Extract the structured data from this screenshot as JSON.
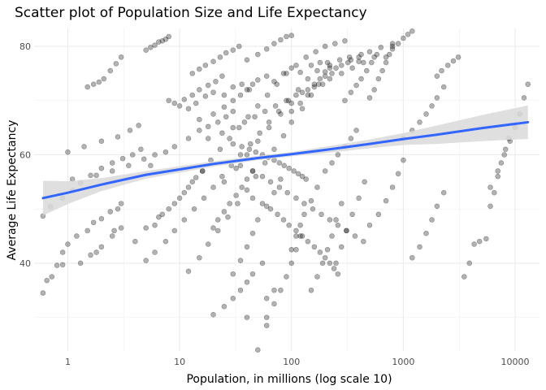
{
  "chart_data": {
    "type": "scatter",
    "title": "Scatter plot of Population Size and Life Expectancy",
    "xlabel": "Population, in millions (log scale 10)",
    "ylabel": "Average Life Expectancy",
    "x_scale": "log10",
    "xlim": [
      0.5,
      16500
    ],
    "ylim": [
      23.8,
      83.3
    ],
    "x_ticks": [
      1,
      10,
      100,
      1000,
      10000
    ],
    "x_tick_labels": [
      "1",
      "10",
      "100",
      "1000",
      "10000"
    ],
    "y_ticks": [
      40,
      60,
      80
    ],
    "y_tick_labels": [
      "40",
      "60",
      "80"
    ],
    "grid": true,
    "legend": "none",
    "colors": {
      "points": "#000000",
      "trend_line": "#3366FF",
      "confidence_band": "#d9d9d9",
      "grid": "#ebebeb"
    },
    "trend_line": {
      "method": "smooth",
      "x": [
        0.6,
        1,
        2,
        5,
        10,
        20,
        50,
        100,
        200,
        500,
        1000,
        2000,
        5000,
        13000
      ],
      "y": [
        52.0,
        53.0,
        54.5,
        56.3,
        57.3,
        58.3,
        59.4,
        60.1,
        60.9,
        62.0,
        62.9,
        63.7,
        64.9,
        66.0
      ],
      "lower": [
        48.8,
        50.9,
        53.3,
        55.6,
        56.7,
        57.8,
        59.0,
        59.7,
        60.3,
        61.2,
        61.8,
        62.0,
        62.5,
        62.9
      ],
      "upper": [
        55.2,
        55.1,
        55.7,
        57.0,
        57.9,
        58.8,
        59.8,
        60.5,
        61.5,
        62.8,
        64.0,
        65.4,
        67.3,
        69.1
      ]
    },
    "series": [
      {
        "x": [
          0.6,
          0.65,
          0.72,
          0.8,
          0.9,
          1.0,
          1.2,
          1.5,
          1.7,
          2.0,
          2.4,
          2.8,
          3.0,
          0.6,
          0.7,
          0.9,
          1.1,
          1.3,
          1.6,
          2.0,
          2.5,
          3.1,
          3.8,
          4.5,
          1.5,
          1.7,
          1.9,
          2.1,
          2.4,
          2.7,
          3.0,
          5,
          5.5,
          6,
          6.5,
          7,
          7.5,
          8,
          1.0,
          1.4,
          2.0,
          2.8,
          3.6,
          4.3,
          1.1,
          1.8,
          2.5,
          3.5,
          4.8,
          6.0,
          1.3,
          1.6,
          2.0,
          2.5,
          3.0,
          0.9,
          1.8,
          2.6,
          5.5,
          7.5,
          9,
          12,
          15,
          18,
          22,
          26,
          30,
          9,
          11,
          13,
          15,
          18,
          21,
          24,
          4,
          5,
          6.5,
          8,
          10,
          12,
          14,
          16,
          13,
          15,
          17,
          20,
          23,
          26,
          30,
          34,
          20,
          25,
          30,
          35,
          40,
          45,
          55,
          30,
          35,
          40,
          45,
          50,
          60,
          70,
          80,
          15,
          20,
          25,
          30,
          35,
          40,
          45,
          20,
          22,
          25,
          28,
          32,
          36,
          40,
          45,
          40,
          50,
          60,
          70,
          80,
          90,
          100,
          60,
          70,
          80,
          90,
          100,
          110,
          120,
          100,
          110,
          120,
          130,
          150,
          170,
          100,
          120,
          140,
          160,
          180,
          200,
          220,
          150,
          170,
          190,
          210,
          230,
          250,
          280,
          200,
          230,
          260,
          300,
          340,
          380,
          250,
          280,
          310,
          350,
          400,
          450,
          300,
          340,
          380,
          420,
          470,
          520,
          580,
          500,
          550,
          600,
          650,
          700,
          750,
          800,
          700,
          800,
          900,
          1000,
          1100,
          1200,
          500,
          600,
          700,
          800,
          900,
          1000,
          1000,
          1200,
          1400,
          1600,
          1800,
          2000,
          2300,
          2000,
          2200,
          2500,
          2800,
          3100,
          1200,
          1400,
          1600,
          1800,
          2000,
          2300,
          6000,
          7000,
          8000,
          9000,
          10000,
          11000,
          12000,
          13000,
          3500,
          3900,
          4300,
          4800,
          5500,
          6000,
          6500,
          7000,
          7500,
          8200,
          8800,
          40,
          50,
          60,
          70,
          60,
          8,
          10,
          12,
          14,
          17,
          20,
          25,
          30,
          36,
          42,
          50,
          60,
          70,
          85,
          100,
          120,
          150,
          180,
          220,
          270,
          330,
          400,
          12,
          15,
          18,
          22,
          27,
          33,
          40,
          48,
          58,
          70,
          85,
          100,
          125,
          150,
          190,
          230,
          280,
          340,
          420,
          6,
          7,
          9,
          11,
          13,
          16,
          19,
          23,
          28,
          34,
          41,
          50,
          61,
          74,
          90,
          110,
          135,
          165,
          200,
          245,
          300,
          5,
          6,
          7.5,
          9,
          11,
          13.5,
          16.5,
          20,
          24,
          29,
          35,
          43,
          52,
          63,
          77,
          94,
          115,
          140,
          170,
          210,
          25,
          32,
          40,
          50,
          63,
          80,
          100,
          125,
          160,
          200,
          250,
          320,
          400,
          500,
          630,
          800,
          45,
          55,
          65,
          75,
          85,
          95,
          110,
          125,
          140,
          160,
          180,
          200,
          220,
          240,
          260,
          18,
          24,
          30,
          38,
          47,
          58,
          72,
          90,
          110,
          140,
          175,
          220,
          280,
          350,
          440,
          550,
          35,
          45,
          55,
          65,
          78,
          92,
          110,
          130,
          155,
          185,
          220,
          260,
          310,
          370,
          440,
          30,
          36,
          42,
          48,
          55,
          62,
          70,
          78,
          86,
          95,
          105,
          115,
          125,
          135
        ],
        "y": [
          34.5,
          36.8,
          37.5,
          39.6,
          42.0,
          43.5,
          45.0,
          46.0,
          47.5,
          48.2,
          49.5,
          50.0,
          51.0,
          48.7,
          50.4,
          52.0,
          53.4,
          54.8,
          56.2,
          57.5,
          58.5,
          59.3,
          60.0,
          61.0,
          72.5,
          73.0,
          73.4,
          74.0,
          75.5,
          76.8,
          78.0,
          79.3,
          79.8,
          80.2,
          80.8,
          81.0,
          81.3,
          81.8,
          60.5,
          61.5,
          62.5,
          63.3,
          64.5,
          65.4,
          55.5,
          56.2,
          57.0,
          58.0,
          59.2,
          60.0,
          40.0,
          41.5,
          43.0,
          45.0,
          46.5,
          39.7,
          42.0,
          46.0,
          58.0,
          60.5,
          61.5,
          63.0,
          64.5,
          65.2,
          66.0,
          67.0,
          68.0,
          69.5,
          70.2,
          71.0,
          72.0,
          72.8,
          73.5,
          74.5,
          44.0,
          46.5,
          48.5,
          50.0,
          52.0,
          54.0,
          55.8,
          57.0,
          75.0,
          75.8,
          76.5,
          77.2,
          78.0,
          78.8,
          79.3,
          80.0,
          30.5,
          32.0,
          33.5,
          35.0,
          36.5,
          38.0,
          40.0,
          38.0,
          40.5,
          43.0,
          45.5,
          48.0,
          50.5,
          53.0,
          55.5,
          66.5,
          67.5,
          68.8,
          70.0,
          71.0,
          72.0,
          73.0,
          46.5,
          48.0,
          49.5,
          51.0,
          52.5,
          54.0,
          55.5,
          57.0,
          77.5,
          78.5,
          79.5,
          80.5,
          81.2,
          81.8,
          82.0,
          30.0,
          32.5,
          35.0,
          37.5,
          40.0,
          42.5,
          45.0,
          42.5,
          45.0,
          47.0,
          49.0,
          51.5,
          54.0,
          68.0,
          69.5,
          71.0,
          72.5,
          74.0,
          75.3,
          76.5,
          35.0,
          37.5,
          40.0,
          42.5,
          45.0,
          48.0,
          51.0,
          57.0,
          58.5,
          60.0,
          61.5,
          63.0,
          64.5,
          40.0,
          43.0,
          46.0,
          49.0,
          52.0,
          55.0,
          70.0,
          71.5,
          72.8,
          74.0,
          75.5,
          77.0,
          78.5,
          70.5,
          72.0,
          74.0,
          75.5,
          77.0,
          78.5,
          80.0,
          78.0,
          79.5,
          80.5,
          81.5,
          82.2,
          82.8,
          47.0,
          49.0,
          51.5,
          54.0,
          56.5,
          59.0,
          63.0,
          64.5,
          66.0,
          67.5,
          69.0,
          70.5,
          72.5,
          74.5,
          75.5,
          76.5,
          77.3,
          78.0,
          41.0,
          43.0,
          45.5,
          48.0,
          50.5,
          53.0,
          54.0,
          57.0,
          60.0,
          62.5,
          65.0,
          67.5,
          70.5,
          73.0,
          37.5,
          40.0,
          43.5,
          44.0,
          44.5,
          50.5,
          53.0,
          56.0,
          58.5,
          61.0,
          63.0,
          30.0,
          24.0,
          28.5,
          35.0,
          33.5,
          70.0,
          69.0,
          68.5,
          69.5,
          70.8,
          71.5,
          71.0,
          72.5,
          73.0,
          72.0,
          73.8,
          74.5,
          73.5,
          75.0,
          76.0,
          75.2,
          76.5,
          77.0,
          76.0,
          77.5,
          78.0,
          77.2,
          38.5,
          41.0,
          43.5,
          46.0,
          48.5,
          51.0,
          53.5,
          56.0,
          58.5,
          61.0,
          63.5,
          66.0,
          68.5,
          71.0,
          73.0,
          75.0,
          76.5,
          77.5,
          78.5,
          47.0,
          49.0,
          51.0,
          53.0,
          55.0,
          57.0,
          59.0,
          61.0,
          63.0,
          65.0,
          67.0,
          69.0,
          71.0,
          73.0,
          75.0,
          76.5,
          78.0,
          79.0,
          80.0,
          80.5,
          81.0,
          40.5,
          42.0,
          44.0,
          46.0,
          48.0,
          50.0,
          52.0,
          54.0,
          56.0,
          58.0,
          60.0,
          62.0,
          64.0,
          66.0,
          68.0,
          70.0,
          72.0,
          74.0,
          75.5,
          77.0,
          55.0,
          57.5,
          60.0,
          62.5,
          65.0,
          67.5,
          69.5,
          71.5,
          73.0,
          74.5,
          76.0,
          77.0,
          78.0,
          79.0,
          79.8,
          80.5,
          52.0,
          51.0,
          50.0,
          49.0,
          48.0,
          47.0,
          46.0,
          45.0,
          44.0,
          43.0,
          42.0,
          41.0,
          40.0,
          39.0,
          38.0,
          63.0,
          64.0,
          65.0,
          66.0,
          67.0,
          68.0,
          69.0,
          70.0,
          71.0,
          72.0,
          73.0,
          74.0,
          75.0,
          76.0,
          77.0,
          78.0,
          58.0,
          57.0,
          56.0,
          55.0,
          54.0,
          53.0,
          52.0,
          51.0,
          50.0,
          49.0,
          48.0,
          47.0,
          46.0,
          45.0,
          44.0,
          62.0,
          61.5,
          61.0,
          60.5,
          60.0,
          59.5,
          59.0,
          58.5,
          58.0,
          57.5,
          57.0,
          56.5,
          56.0,
          55.5
        ]
      }
    ]
  }
}
